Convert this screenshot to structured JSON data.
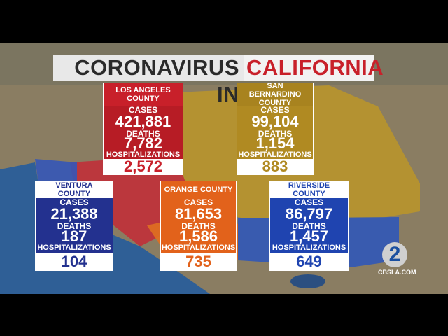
{
  "title": {
    "part1": "CORONAVIRUS IN",
    "part2": "CALIFORNIA"
  },
  "counties": [
    {
      "name": "LOS ANGELES COUNTY",
      "cases_label": "CASES",
      "cases": "421,881",
      "deaths_label": "DEATHS",
      "deaths": "7,782",
      "hospitalizations_label": "HOSPITALIZATIONS",
      "hospitalizations": "2,572"
    },
    {
      "name": "SAN BERNARDINO COUNTY",
      "cases_label": "CASES",
      "cases": "99,104",
      "deaths_label": "DEATHS",
      "deaths": "1,154",
      "hospitalizations_label": "HOSPITALIZATIONS",
      "hospitalizations": "883"
    },
    {
      "name": "VENTURA COUNTY",
      "cases_label": "CASES",
      "cases": "21,388",
      "deaths_label": "DEATHS",
      "deaths": "187",
      "hospitalizations_label": "HOSPITALIZATIONS",
      "hospitalizations": "104"
    },
    {
      "name": "ORANGE COUNTY",
      "cases_label": "CASES",
      "cases": "81,653",
      "deaths_label": "DEATHS",
      "deaths": "1,586",
      "hospitalizations_label": "HOSPITALIZATIONS",
      "hospitalizations": "735"
    },
    {
      "name": "RIVERSIDE COUNTY",
      "cases_label": "CASES",
      "cases": "86,797",
      "deaths_label": "DEATHS",
      "deaths": "1,457",
      "hospitalizations_label": "HOSPITALIZATIONS",
      "hospitalizations": "649"
    }
  ],
  "logo": {
    "mark": "2",
    "site": "CBSLA.COM"
  }
}
